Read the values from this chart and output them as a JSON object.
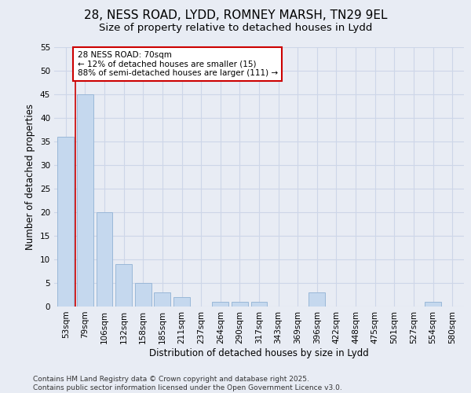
{
  "title_line1": "28, NESS ROAD, LYDD, ROMNEY MARSH, TN29 9EL",
  "title_line2": "Size of property relative to detached houses in Lydd",
  "xlabel": "Distribution of detached houses by size in Lydd",
  "ylabel": "Number of detached properties",
  "categories": [
    "53sqm",
    "79sqm",
    "106sqm",
    "132sqm",
    "158sqm",
    "185sqm",
    "211sqm",
    "237sqm",
    "264sqm",
    "290sqm",
    "317sqm",
    "343sqm",
    "369sqm",
    "396sqm",
    "422sqm",
    "448sqm",
    "475sqm",
    "501sqm",
    "527sqm",
    "554sqm",
    "580sqm"
  ],
  "values": [
    36,
    45,
    20,
    9,
    5,
    3,
    2,
    0,
    1,
    1,
    1,
    0,
    0,
    3,
    0,
    0,
    0,
    0,
    0,
    1,
    0
  ],
  "bar_color": "#c5d8ee",
  "bar_edge_color": "#9ab8d8",
  "grid_color": "#cdd6e8",
  "background_color": "#e8ecf4",
  "vline_color": "#cc0000",
  "annotation_box_text": "28 NESS ROAD: 70sqm\n← 12% of detached houses are smaller (15)\n88% of semi-detached houses are larger (111) →",
  "annotation_box_color": "#cc0000",
  "ylim": [
    0,
    55
  ],
  "yticks": [
    0,
    5,
    10,
    15,
    20,
    25,
    30,
    35,
    40,
    45,
    50,
    55
  ],
  "footnote": "Contains HM Land Registry data © Crown copyright and database right 2025.\nContains public sector information licensed under the Open Government Licence v3.0.",
  "footnote_fontsize": 6.5,
  "title_fontsize1": 11,
  "title_fontsize2": 9.5,
  "label_fontsize": 8.5,
  "tick_fontsize": 7.5,
  "annot_fontsize": 7.5
}
